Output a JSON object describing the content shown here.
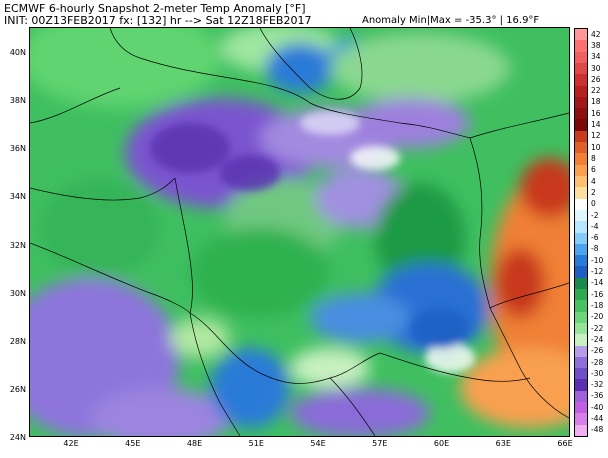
{
  "header": {
    "title": "ECMWF 6-hourly Snapshot 2-meter Temp Anomaly [°F]",
    "init_line": "INIT: 00Z13FEB2017 fx: [132] hr --> Sat 12Z18FEB2017",
    "anomaly_line": "Anomaly Min|Max = -35.3° | 16.9°F"
  },
  "map": {
    "lat_labels": [
      "40N",
      "38N",
      "36N",
      "34N",
      "32N",
      "30N",
      "28N",
      "26N",
      "24N"
    ],
    "lon_labels": [
      "42E",
      "45E",
      "48E",
      "51E",
      "54E",
      "57E",
      "60E",
      "63E",
      "66E"
    ],
    "lat_range": [
      24,
      41
    ],
    "lon_range": [
      40,
      66
    ]
  },
  "colorbar": {
    "labels": [
      "42",
      "38",
      "34",
      "30",
      "26",
      "22",
      "18",
      "16",
      "14",
      "12",
      "10",
      "8",
      "6",
      "4",
      "2",
      "0",
      "-2",
      "-4",
      "-6",
      "-8",
      "-10",
      "-12",
      "-14",
      "-16",
      "-18",
      "-20",
      "-22",
      "-24",
      "-26",
      "-28",
      "-30",
      "-32",
      "-36",
      "-40",
      "-44",
      "-48"
    ],
    "colors": [
      "#ff9999",
      "#ff7070",
      "#f06060",
      "#e04848",
      "#cc3030",
      "#b81f1f",
      "#a01818",
      "#8c1010",
      "#7a0a0a",
      "#c83c1e",
      "#e0602a",
      "#f08036",
      "#f8a050",
      "#fcc070",
      "#fde0a0",
      "#ffffff",
      "#dff5ff",
      "#b8e6ff",
      "#86ccf8",
      "#4ea4ec",
      "#2a7ad8",
      "#1e5fc4",
      "#1a8a4a",
      "#30a850",
      "#48c260",
      "#6cd47a",
      "#96e49a",
      "#c8f0c0",
      "#b49ee8",
      "#9070d8",
      "#7050c8",
      "#5a30b0",
      "#a060d8",
      "#c060e0",
      "#d880e8",
      "#f0b0f0"
    ]
  }
}
